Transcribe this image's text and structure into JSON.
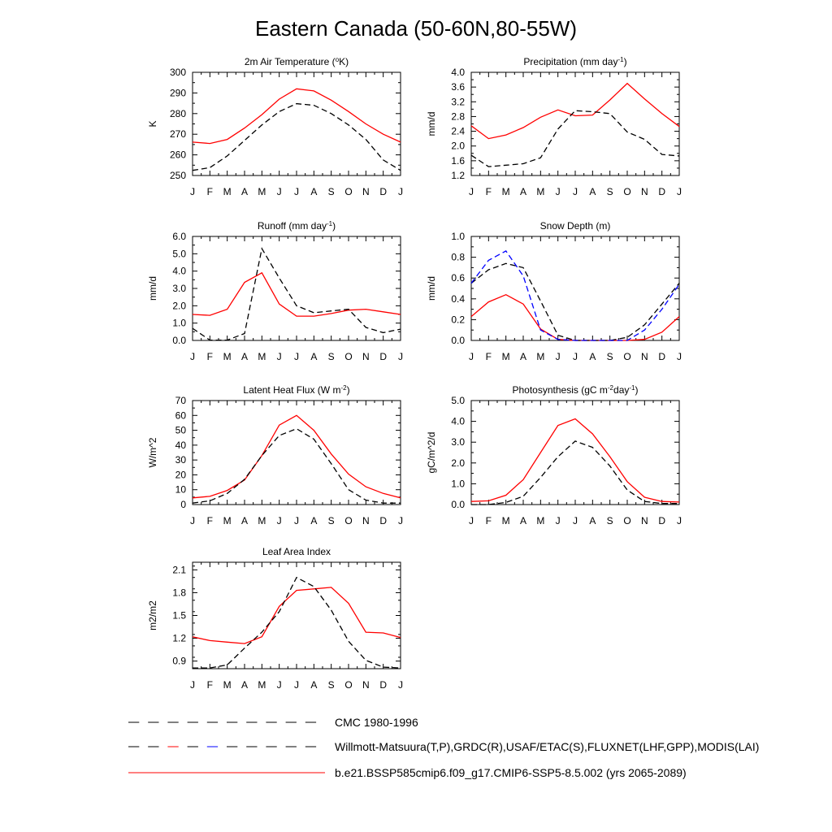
{
  "figure_title": "Eastern Canada (50-60N,80-55W)",
  "legend": [
    {
      "label": "CMC 1980-1996",
      "color": "#000000",
      "dash": true,
      "segcolors": [
        "#000000"
      ]
    },
    {
      "label": "Willmott-Matsuura(T,P),GRDC(R),USAF/ETAC(S),FLUXNET(LHF,GPP),MODIS(LAI)",
      "color": "#000000",
      "dash": true,
      "segcolors": [
        "#000000",
        "#ff0000",
        "#0000ff"
      ]
    },
    {
      "label": "b.e21.BSSP585cmip6.f09_g17.CMIP6-SSP5-8.5.002 (yrs 2065-2089)",
      "color": "#ff0000",
      "dash": false,
      "segcolors": [
        "#ff0000"
      ]
    }
  ],
  "chart_data": [
    {
      "type": "line",
      "title": "2m Air Temperature (°K)",
      "title_parts": [
        [
          "2m Air Temperature (",
          ""
        ],
        [
          "o",
          "sup"
        ],
        [
          "K)",
          ""
        ]
      ],
      "xlabel": "",
      "ylabel": "K",
      "categories": [
        "J",
        "F",
        "M",
        "A",
        "M",
        "J",
        "J",
        "A",
        "S",
        "O",
        "N",
        "D",
        "J"
      ],
      "ylim": [
        250,
        300
      ],
      "yticks": [
        250,
        260,
        270,
        280,
        290,
        300
      ],
      "yticklabels": [
        "250",
        "260",
        "270",
        "280",
        "290",
        "300"
      ],
      "series": [
        {
          "values": [
            266.2,
            265.5,
            267.5,
            273,
            279.5,
            287,
            292,
            291,
            286.5,
            281,
            275,
            270,
            266.2
          ],
          "color": "#ff0000",
          "dash": false
        },
        {
          "values": [
            252.5,
            253.8,
            259.5,
            267,
            274.5,
            281,
            284.8,
            284,
            280,
            274.5,
            267.5,
            257.5,
            252.5
          ],
          "color": "#000000",
          "dash": true
        }
      ]
    },
    {
      "type": "line",
      "title": "Precipitation (mm day-1)",
      "title_parts": [
        [
          "Precipitation (mm day",
          ""
        ],
        [
          "-1",
          "sup"
        ],
        [
          ")",
          ""
        ]
      ],
      "xlabel": "",
      "ylabel": "mm/d",
      "categories": [
        "J",
        "F",
        "M",
        "A",
        "M",
        "J",
        "J",
        "A",
        "S",
        "O",
        "N",
        "D",
        "J"
      ],
      "ylim": [
        1.2,
        4.0
      ],
      "yticks": [
        1.2,
        1.6,
        2.0,
        2.4,
        2.8,
        3.2,
        3.6,
        4.0
      ],
      "yticklabels": [
        "1.2",
        "1.6",
        "2.0",
        "2.4",
        "2.8",
        "3.2",
        "3.6",
        "4.0"
      ],
      "series": [
        {
          "values": [
            2.55,
            2.2,
            2.3,
            2.5,
            2.78,
            2.98,
            2.82,
            2.84,
            3.25,
            3.7,
            3.28,
            2.88,
            2.53
          ],
          "color": "#ff0000",
          "dash": false
        },
        {
          "values": [
            1.75,
            1.44,
            1.48,
            1.52,
            1.68,
            2.46,
            2.96,
            2.93,
            2.88,
            2.38,
            2.18,
            1.77,
            1.73
          ],
          "color": "#000000",
          "dash": true
        }
      ]
    },
    {
      "type": "line",
      "title": "Runoff (mm day-1)",
      "title_parts": [
        [
          "Runoff (mm day",
          ""
        ],
        [
          "-1",
          "sup"
        ],
        [
          ")",
          ""
        ]
      ],
      "xlabel": "",
      "ylabel": "mm/d",
      "categories": [
        "J",
        "F",
        "M",
        "A",
        "M",
        "J",
        "J",
        "A",
        "S",
        "O",
        "N",
        "D",
        "J"
      ],
      "ylim": [
        0,
        6.0
      ],
      "yticks": [
        0,
        1,
        2,
        3,
        4,
        5,
        6
      ],
      "yticklabels": [
        "0.0",
        "1.0",
        "2.0",
        "3.0",
        "4.0",
        "5.0",
        "6.0"
      ],
      "series": [
        {
          "values": [
            1.5,
            1.45,
            1.8,
            3.35,
            3.9,
            2.1,
            1.4,
            1.4,
            1.55,
            1.75,
            1.8,
            1.65,
            1.5
          ],
          "color": "#ff0000",
          "dash": false
        },
        {
          "values": [
            0.7,
            0.02,
            0.02,
            0.4,
            5.3,
            3.6,
            2.0,
            1.6,
            1.7,
            1.8,
            0.75,
            0.45,
            0.65
          ],
          "color": "#000000",
          "dash": true
        }
      ]
    },
    {
      "type": "line",
      "title": "Snow Depth (m)",
      "title_parts": [
        [
          "Snow Depth (m)",
          ""
        ]
      ],
      "xlabel": "",
      "ylabel": "mm/d",
      "categories": [
        "J",
        "F",
        "M",
        "A",
        "M",
        "J",
        "J",
        "A",
        "S",
        "O",
        "N",
        "D",
        "J"
      ],
      "ylim": [
        0,
        1.0
      ],
      "yticks": [
        0,
        0.2,
        0.4,
        0.6,
        0.8,
        1.0
      ],
      "yticklabels": [
        "0.0",
        "0.2",
        "0.4",
        "0.6",
        "0.8",
        "1.0"
      ],
      "series": [
        {
          "values": [
            0.23,
            0.37,
            0.44,
            0.35,
            0.11,
            0.01,
            0,
            0,
            0,
            0,
            0.01,
            0.08,
            0.23
          ],
          "color": "#ff0000",
          "dash": false
        },
        {
          "values": [
            0.55,
            0.68,
            0.74,
            0.7,
            0.38,
            0.05,
            0,
            0,
            0,
            0.03,
            0.15,
            0.35,
            0.55
          ],
          "color": "#000000",
          "dash": true
        },
        {
          "values": [
            0.55,
            0.77,
            0.86,
            0.62,
            0.1,
            0.01,
            0,
            0,
            0,
            0,
            0.1,
            0.3,
            0.54
          ],
          "color": "#0000ff",
          "dash": true
        }
      ]
    },
    {
      "type": "line",
      "title": "Latent Heat Flux (W m-2)",
      "title_parts": [
        [
          "Latent Heat Flux (W m",
          ""
        ],
        [
          "-2",
          "sup"
        ],
        [
          ")",
          ""
        ]
      ],
      "xlabel": "",
      "ylabel": "W/m^2",
      "categories": [
        "J",
        "F",
        "M",
        "A",
        "M",
        "J",
        "J",
        "A",
        "S",
        "O",
        "N",
        "D",
        "J"
      ],
      "ylim": [
        0,
        70
      ],
      "yticks": [
        0,
        10,
        20,
        30,
        40,
        50,
        60,
        70
      ],
      "yticklabels": [
        "0",
        "10",
        "20",
        "30",
        "40",
        "50",
        "60",
        "70"
      ],
      "series": [
        {
          "values": [
            4.5,
            5.5,
            9.5,
            16.5,
            33,
            53.5,
            60,
            50,
            34,
            20.5,
            12,
            7.5,
            4.5
          ],
          "color": "#ff0000",
          "dash": false
        },
        {
          "values": [
            1,
            2.5,
            7.5,
            17,
            33,
            46.5,
            51,
            44,
            27.5,
            10,
            3,
            1,
            1
          ],
          "color": "#000000",
          "dash": true
        }
      ]
    },
    {
      "type": "line",
      "title": "Photosynthesis (gC m-2day-1)",
      "title_parts": [
        [
          "Photosynthesis (gC m",
          ""
        ],
        [
          "-2",
          "sup"
        ],
        [
          "day",
          ""
        ],
        [
          "-1",
          "sup"
        ],
        [
          ")",
          ""
        ]
      ],
      "xlabel": "",
      "ylabel": "gC/m^2/d",
      "categories": [
        "J",
        "F",
        "M",
        "A",
        "M",
        "J",
        "J",
        "A",
        "S",
        "O",
        "N",
        "D",
        "J"
      ],
      "ylim": [
        0,
        5.0
      ],
      "yticks": [
        0,
        1,
        2,
        3,
        4,
        5
      ],
      "yticklabels": [
        "0.0",
        "1.0",
        "2.0",
        "3.0",
        "4.0",
        "5.0"
      ],
      "series": [
        {
          "values": [
            0.15,
            0.18,
            0.45,
            1.2,
            2.5,
            3.8,
            4.12,
            3.4,
            2.3,
            1.1,
            0.35,
            0.15,
            0.12
          ],
          "color": "#ff0000",
          "dash": false
        },
        {
          "values": [
            0,
            0,
            0.1,
            0.4,
            1.3,
            2.3,
            3.05,
            2.75,
            1.85,
            0.7,
            0.15,
            0.05,
            0.05
          ],
          "color": "#000000",
          "dash": true
        }
      ]
    },
    {
      "type": "line",
      "title": "Leaf Area Index",
      "title_parts": [
        [
          "Leaf Area Index",
          ""
        ]
      ],
      "xlabel": "",
      "ylabel": "m2/m2",
      "categories": [
        "J",
        "F",
        "M",
        "A",
        "M",
        "J",
        "J",
        "A",
        "S",
        "O",
        "N",
        "D",
        "J"
      ],
      "ylim": [
        0.8,
        2.2
      ],
      "yticks": [
        0.9,
        1.2,
        1.5,
        1.8,
        2.1
      ],
      "yticklabels": [
        "0.9",
        "1.2",
        "1.5",
        "1.8",
        "2.1"
      ],
      "series": [
        {
          "values": [
            1.22,
            1.17,
            1.15,
            1.13,
            1.22,
            1.62,
            1.83,
            1.85,
            1.87,
            1.66,
            1.28,
            1.27,
            1.21
          ],
          "color": "#ff0000",
          "dash": false
        },
        {
          "values": [
            0.81,
            0.81,
            0.85,
            1.07,
            1.28,
            1.55,
            2.0,
            1.88,
            1.57,
            1.16,
            0.91,
            0.82,
            0.81
          ],
          "color": "#000000",
          "dash": true
        }
      ]
    }
  ]
}
